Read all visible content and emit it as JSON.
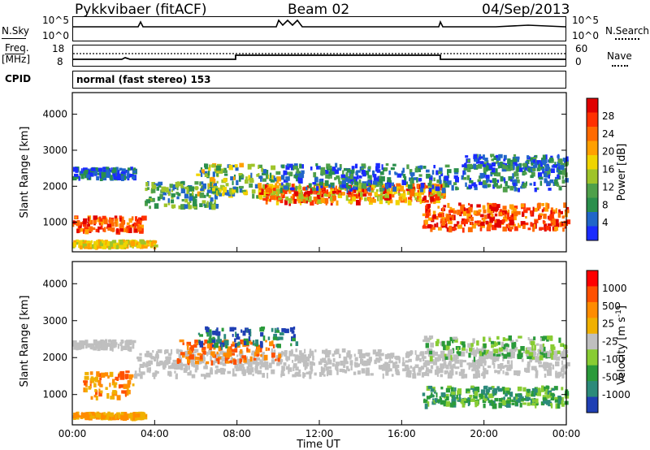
{
  "header": {
    "station": "Pykkvibaer (fitACF)",
    "beam": "Beam 02",
    "date": "04/Sep/2013"
  },
  "top_panels": {
    "nsky_label": "N.Sky",
    "nsearch_label": "N.Search",
    "nsky_ticks": [
      "10^5",
      "10^0"
    ],
    "nsearch_ticks": [
      "10^5",
      "10^0"
    ],
    "freq_label": "Freq.",
    "freq_unit": "[MHz]",
    "freq_ticks": [
      "18",
      "8"
    ],
    "nave_label": "Nave",
    "nave_ticks": [
      "60",
      "0"
    ],
    "cpid_label": "CPID",
    "cpid_text": "normal (fast stereo) 153"
  },
  "chart_data": [
    {
      "type": "heatmap",
      "title": "",
      "xlabel": "Time UT",
      "ylabel": "Slant Range [km]",
      "x_ticks": [
        "00:00",
        "04:00",
        "08:00",
        "12:00",
        "16:00",
        "20:00",
        "00:00"
      ],
      "y_ticks": [
        "1000",
        "2000",
        "3000",
        "4000"
      ],
      "ylim": [
        180,
        4600
      ],
      "colorbar": {
        "label": "Power [dB]",
        "ticks": [
          "4",
          "8",
          "12",
          "16",
          "20",
          "24",
          "28"
        ],
        "colors": [
          "#1a2bff",
          "#2166c9",
          "#2a8f4c",
          "#4fa04a",
          "#9fc42a",
          "#f0d400",
          "#ffa000",
          "#ff6a00",
          "#ff3000",
          "#e00000"
        ]
      }
    },
    {
      "type": "heatmap",
      "title": "",
      "xlabel": "Time UT",
      "ylabel": "Slant Range [km]",
      "x_ticks": [
        "00:00",
        "04:00",
        "08:00",
        "12:00",
        "16:00",
        "20:00",
        "00:00"
      ],
      "y_ticks": [
        "1000",
        "2000",
        "3000",
        "4000"
      ],
      "ylim": [
        180,
        4600
      ],
      "colorbar": {
        "label": "Velocity [m s",
        "label_sup": "-1",
        "label_end": "]",
        "ticks": [
          "1000",
          "500",
          "25",
          "-25",
          "-100",
          "-500",
          "-1000"
        ],
        "colors": [
          "#1f3fb4",
          "#2c8a7a",
          "#2a9a3a",
          "#88cc33",
          "#bfbfbf",
          "#f0b000",
          "#ff8c00",
          "#ff5000",
          "#ff0000"
        ]
      }
    }
  ]
}
